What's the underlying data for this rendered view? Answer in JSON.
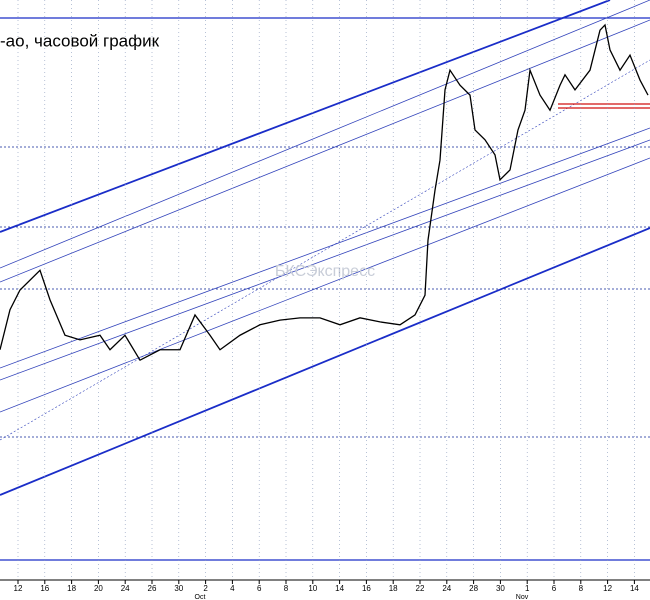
{
  "chart_data": {
    "type": "line",
    "title": "-ao, часовой график",
    "watermark": "БКСЭкспресс",
    "x": [
      0,
      10,
      20,
      40,
      50,
      65,
      80,
      100,
      110,
      125,
      140,
      160,
      180,
      195,
      210,
      220,
      240,
      260,
      280,
      300,
      320,
      340,
      360,
      380,
      400,
      415,
      425,
      428,
      435,
      440,
      445,
      450,
      460,
      470,
      475,
      485,
      495,
      500,
      510,
      518,
      525,
      530,
      540,
      550,
      560,
      565,
      575,
      590,
      600,
      605,
      610,
      620,
      630,
      640,
      648
    ],
    "series": [
      {
        "color": "#000000",
        "values": [
          39.7,
          46.6,
          50,
          53.4,
          48.3,
          42.2,
          41.4,
          42.2,
          39.7,
          42.2,
          37.9,
          39.7,
          39.7,
          45.7,
          42.2,
          39.7,
          42.2,
          44,
          44.8,
          45.2,
          45.2,
          44,
          45.2,
          44.5,
          44,
          45.7,
          49.1,
          58.6,
          67.2,
          72.4,
          84.5,
          87.9,
          85.3,
          83.6,
          77.6,
          75.9,
          73.3,
          69,
          70.7,
          77.6,
          81,
          87.9,
          83.6,
          81,
          85.3,
          87.1,
          84.5,
          87.9,
          94.8,
          95.7,
          91.4,
          87.9,
          90.5,
          86.2,
          83.6
        ]
      }
    ],
    "xlim": [
      0,
      650
    ],
    "ylim": [
      0,
      100
    ],
    "xticks": [
      {
        "value": 18,
        "label": "12"
      },
      {
        "value": 44.8,
        "label": "16"
      },
      {
        "value": 71.6,
        "label": "18"
      },
      {
        "value": 98.4,
        "label": "20"
      },
      {
        "value": 125.2,
        "label": "24"
      },
      {
        "value": 152,
        "label": "26"
      },
      {
        "value": 178.8,
        "label": "30"
      },
      {
        "value": 205.6,
        "label": "2"
      },
      {
        "value": 232.4,
        "label": "4"
      },
      {
        "value": 259.2,
        "label": "6"
      },
      {
        "value": 286,
        "label": "8"
      },
      {
        "value": 312.8,
        "label": "10"
      },
      {
        "value": 339.6,
        "label": "14"
      },
      {
        "value": 366.4,
        "label": "16"
      },
      {
        "value": 393.2,
        "label": "18"
      },
      {
        "value": 420,
        "label": "22"
      },
      {
        "value": 446.8,
        "label": "24"
      },
      {
        "value": 473.6,
        "label": "28"
      },
      {
        "value": 500.4,
        "label": "30"
      },
      {
        "value": 527.2,
        "label": "1"
      },
      {
        "value": 554,
        "label": "6"
      },
      {
        "value": 580.8,
        "label": "8"
      },
      {
        "value": 607.6,
        "label": "12"
      },
      {
        "value": 634.4,
        "label": "14"
      }
    ],
    "month_ticks": [
      {
        "value": 200,
        "label": "Oct"
      },
      {
        "value": 522,
        "label": "Nov"
      }
    ],
    "grid": true
  }
}
